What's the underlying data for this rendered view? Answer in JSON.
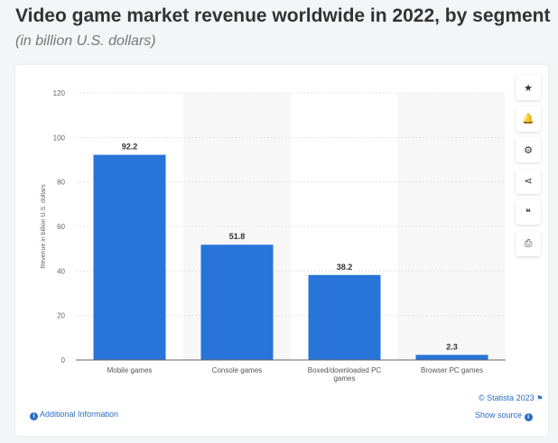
{
  "header": {
    "title": "Video game market revenue worldwide in 2022, by segment",
    "subtitle": "(in billion U.S. dollars)"
  },
  "chart_data": {
    "type": "bar",
    "categories": [
      "Mobile games",
      "Console games",
      "Boxed/downloaded PC games",
      "Browser PC games"
    ],
    "values": [
      92.2,
      51.8,
      38.2,
      2.3
    ],
    "data_labels": [
      "92.2",
      "51.8",
      "38.2",
      "2.3"
    ],
    "title": "",
    "xlabel": "",
    "ylabel": "Revenue in billion U.S. dollars",
    "ylim": [
      0,
      120
    ],
    "yticks": [
      0,
      20,
      40,
      60,
      80,
      100,
      120
    ],
    "grid": true,
    "bar_color": "#2874d8",
    "band_color": "#f7f7f7"
  },
  "footer": {
    "copyright": "© Statista 2023",
    "show_source": "Show source",
    "additional_info": "Additional Information"
  },
  "sidebar": [
    {
      "icon": "star-icon",
      "glyph": "★"
    },
    {
      "icon": "bell-icon",
      "glyph": "🔔"
    },
    {
      "icon": "gear-icon",
      "glyph": "⚙"
    },
    {
      "icon": "share-icon",
      "glyph": "⋖"
    },
    {
      "icon": "quote-icon",
      "glyph": "❝"
    },
    {
      "icon": "print-icon",
      "glyph": "⎙"
    }
  ]
}
